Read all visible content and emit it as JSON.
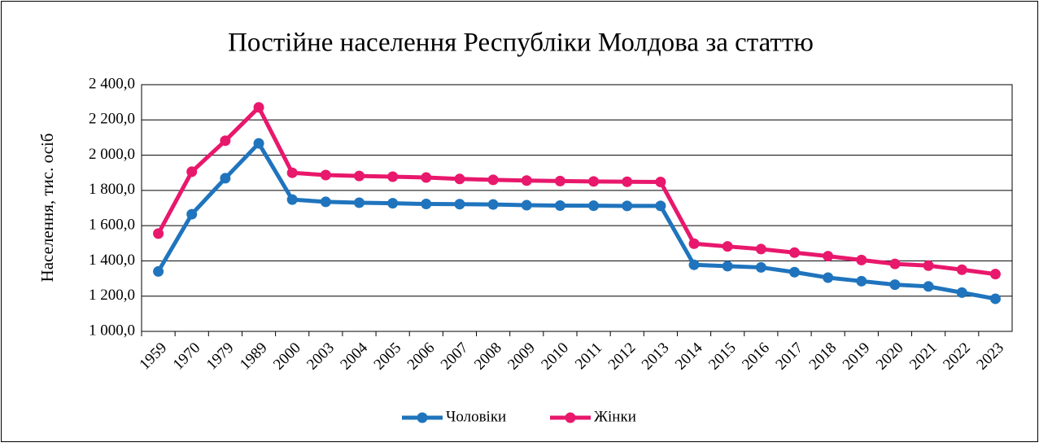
{
  "chart_data": {
    "type": "line",
    "title": "Постійне населення Республіки Молдова за статтю",
    "ylabel": "Населення, тис. осіб",
    "categories": [
      "1959",
      "1970",
      "1979",
      "1989",
      "2000",
      "2003",
      "2004",
      "2005",
      "2006",
      "2007",
      "2008",
      "2009",
      "2010",
      "2011",
      "2012",
      "2013",
      "2014",
      "2015",
      "2016",
      "2017",
      "2018",
      "2019",
      "2020",
      "2021",
      "2022",
      "2023"
    ],
    "series": [
      {
        "name": "Чоловіки",
        "color": "#1f74bd",
        "values": [
          1340,
          1665,
          1869,
          2067,
          1748,
          1735,
          1730,
          1727,
          1723,
          1722,
          1720,
          1716,
          1714,
          1713,
          1712,
          1712,
          1378,
          1370,
          1363,
          1336,
          1305,
          1285,
          1265,
          1255,
          1220,
          1185
        ]
      },
      {
        "name": "Жінки",
        "color": "#e8186c",
        "values": [
          1555,
          1906,
          2082,
          2271,
          1900,
          1887,
          1882,
          1878,
          1873,
          1865,
          1860,
          1856,
          1853,
          1851,
          1849,
          1848,
          1498,
          1482,
          1467,
          1447,
          1427,
          1405,
          1383,
          1373,
          1350,
          1325
        ]
      }
    ],
    "ylim": [
      1000,
      2400
    ],
    "yticks": [
      {
        "value": 1000,
        "label": "1 000,0"
      },
      {
        "value": 1200,
        "label": "1 200,0"
      },
      {
        "value": 1400,
        "label": "1 400,0"
      },
      {
        "value": 1600,
        "label": "1 600,0"
      },
      {
        "value": 1800,
        "label": "1 800,0"
      },
      {
        "value": 2000,
        "label": "2 000,0"
      },
      {
        "value": 2200,
        "label": "2 200,0"
      },
      {
        "value": 2400,
        "label": "2 400,0"
      }
    ],
    "grid": true,
    "legend": "bottom"
  }
}
